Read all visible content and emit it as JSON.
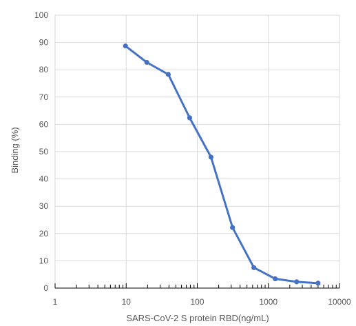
{
  "chart_data": {
    "type": "line",
    "title": "",
    "xlabel": "SARS-CoV-2 S protein RBD(ng/mL)",
    "ylabel": "Binding (%)",
    "x_scale": "log",
    "xlim": [
      1,
      10000
    ],
    "ylim": [
      0,
      100
    ],
    "x_ticks": [
      1,
      10,
      100,
      1000,
      10000
    ],
    "x_tick_labels": [
      "1",
      "10",
      "100",
      "1000",
      "10000"
    ],
    "y_ticks": [
      0,
      10,
      20,
      30,
      40,
      50,
      60,
      70,
      80,
      90,
      100
    ],
    "y_tick_labels": [
      "0",
      "10",
      "20",
      "30",
      "40",
      "50",
      "60",
      "70",
      "80",
      "90",
      "100"
    ],
    "grid": true,
    "legend": "none",
    "series": [
      {
        "color": "#4472c4",
        "x": [
          9.77,
          19.5,
          39.1,
          78.1,
          156,
          313,
          625,
          1250,
          2500,
          5000
        ],
        "y": [
          88.7,
          82.7,
          78.3,
          62.4,
          48.0,
          22.2,
          7.5,
          3.4,
          2.3,
          1.8
        ]
      }
    ]
  }
}
